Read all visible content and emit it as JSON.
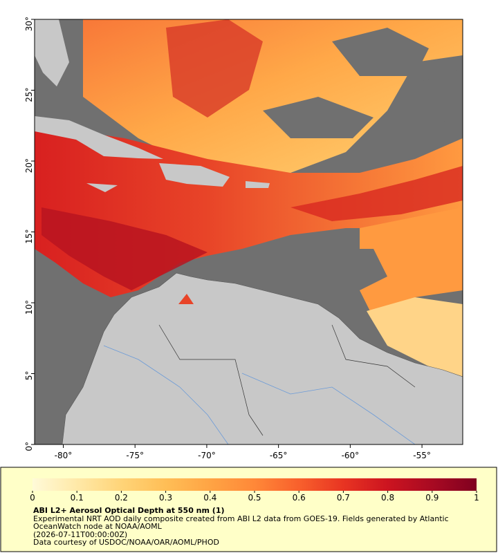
{
  "map": {
    "xlim": [
      -82,
      -52.16
    ],
    "ylim": [
      0,
      30
    ],
    "xticks": [
      {
        "value": -80,
        "label": "-80°"
      },
      {
        "value": -75,
        "label": "-75°"
      },
      {
        "value": -70,
        "label": "-70°"
      },
      {
        "value": -65,
        "label": "-65°"
      },
      {
        "value": -60,
        "label": "-60°"
      },
      {
        "value": -55,
        "label": "-55°"
      }
    ],
    "yticks": [
      {
        "value": 0,
        "label": "0°"
      },
      {
        "value": 5,
        "label": "5°"
      },
      {
        "value": 10,
        "label": "10°"
      },
      {
        "value": 15,
        "label": "15°"
      },
      {
        "value": 20,
        "label": "20°"
      },
      {
        "value": 25,
        "label": "25°"
      },
      {
        "value": 30,
        "label": "30°"
      }
    ]
  },
  "colorbar": {
    "lim": [
      0,
      1
    ],
    "ticks": [
      0,
      0.1,
      0.2,
      0.3,
      0.4,
      0.5,
      0.6,
      0.7,
      0.8,
      0.9,
      1
    ],
    "colors": [
      "#fffad8",
      "#ffe9a8",
      "#ffd478",
      "#ffbe56",
      "#ffa444",
      "#ff8838",
      "#f8602c",
      "#e83422",
      "#cc1420",
      "#a80a22",
      "#800020"
    ]
  },
  "caption": {
    "title": "ABI L2+ Aerosol Optical Depth at 550 nm (1)",
    "description": "Experimental NRT AOD daily composite created from ABI L2 data from GOES-19. Fields generated by Atlantic OceanWatch node at NOAA/AOML",
    "timestamp": "(2026-07-11T00:00:00Z)",
    "credit": "Data courtesy of USDOC/NOAA/OAR/AOML/PHOD"
  }
}
